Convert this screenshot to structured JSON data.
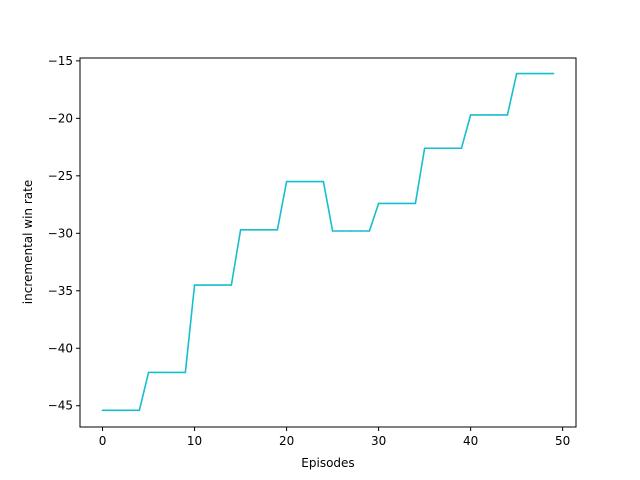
{
  "chart_data": {
    "type": "line",
    "xlabel": "Episodes",
    "ylabel": "incremental win rate",
    "xlim": [
      -2.45,
      51.45
    ],
    "ylim": [
      -46.85,
      -14.75
    ],
    "xticks": [
      0,
      10,
      20,
      30,
      40,
      50
    ],
    "yticks": [
      -45,
      -40,
      -35,
      -30,
      -25,
      -20,
      -15
    ],
    "xtick_labels": [
      "0",
      "10",
      "20",
      "30",
      "40",
      "50"
    ],
    "ytick_labels": [
      "−45",
      "−40",
      "−35",
      "−30",
      "−25",
      "−20",
      "−15"
    ],
    "grid": false,
    "series_color": "#17becf",
    "series": [
      {
        "x": [
          0,
          1,
          2,
          3,
          4,
          5,
          6,
          7,
          8,
          9,
          10,
          11,
          12,
          13,
          14,
          15,
          16,
          17,
          18,
          19,
          20,
          21,
          22,
          23,
          24,
          25,
          26,
          27,
          28,
          29,
          30,
          31,
          32,
          33,
          34,
          35,
          36,
          37,
          38,
          39,
          40,
          41,
          42,
          43,
          44,
          45,
          46,
          47,
          48,
          49
        ],
        "values": [
          -45.4,
          -45.4,
          -45.4,
          -45.4,
          -45.4,
          -42.1,
          -42.1,
          -42.1,
          -42.1,
          -42.1,
          -34.5,
          -34.5,
          -34.5,
          -34.5,
          -34.5,
          -29.7,
          -29.7,
          -29.7,
          -29.7,
          -29.7,
          -25.5,
          -25.5,
          -25.5,
          -25.5,
          -25.5,
          -29.8,
          -29.8,
          -29.8,
          -29.8,
          -29.8,
          -27.4,
          -27.4,
          -27.4,
          -27.4,
          -27.4,
          -22.6,
          -22.6,
          -22.6,
          -22.6,
          -22.6,
          -19.7,
          -19.7,
          -19.7,
          -19.7,
          -19.7,
          -16.1,
          -16.1,
          -16.1,
          -16.1,
          -16.1
        ]
      }
    ]
  }
}
